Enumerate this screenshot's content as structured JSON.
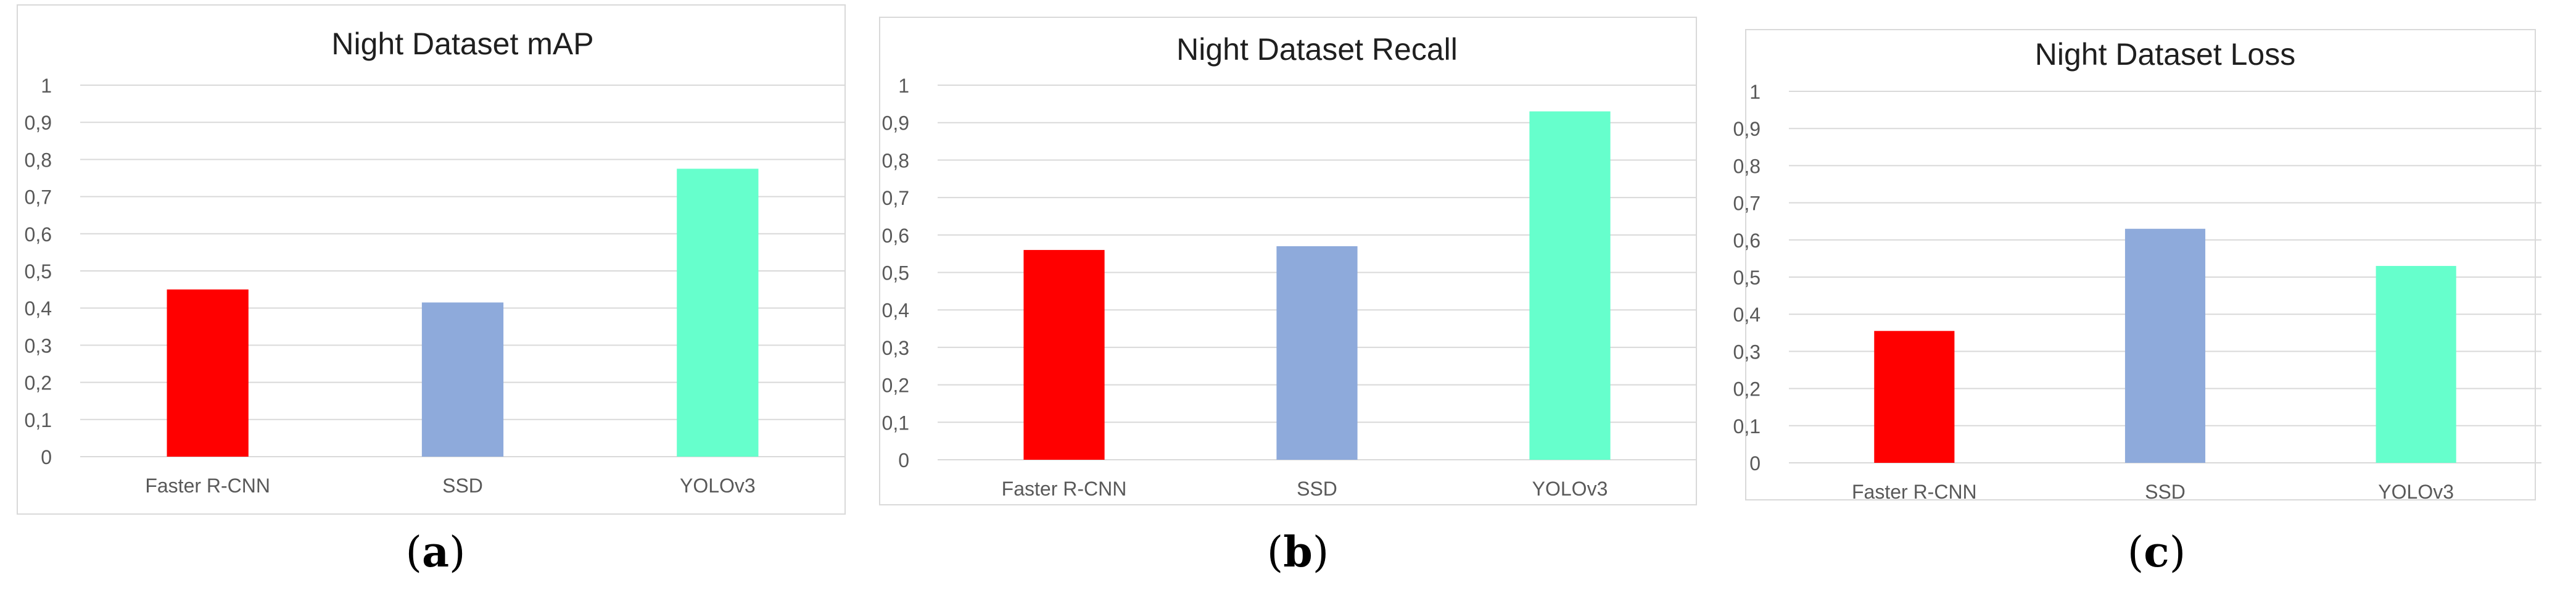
{
  "chart_data": [
    {
      "type": "bar",
      "title": "Night Dataset mAP",
      "categories": [
        "Faster R-CNN",
        "SSD",
        "YOLOv3"
      ],
      "values": [
        0.45,
        0.415,
        0.775
      ],
      "colors": [
        "#ff0000",
        "#8eaadb",
        "#66ffcc"
      ],
      "ylim": [
        0,
        1
      ],
      "yticks": [
        "0",
        "0,1",
        "0,2",
        "0,3",
        "0,4",
        "0,5",
        "0,6",
        "0,7",
        "0,8",
        "0,9",
        "1"
      ],
      "grid": true,
      "subfigure": "a"
    },
    {
      "type": "bar",
      "title": "Night Dataset Recall",
      "categories": [
        "Faster R-CNN",
        "SSD",
        "YOLOv3"
      ],
      "values": [
        0.56,
        0.57,
        0.93
      ],
      "colors": [
        "#ff0000",
        "#8eaadb",
        "#66ffcc"
      ],
      "ylim": [
        0,
        1
      ],
      "yticks": [
        "0",
        "0,1",
        "0,2",
        "0,3",
        "0,4",
        "0,5",
        "0,6",
        "0,7",
        "0,8",
        "0,9",
        "1"
      ],
      "grid": true,
      "subfigure": "b"
    },
    {
      "type": "bar",
      "title": "Night Dataset Loss",
      "categories": [
        "Faster R-CNN",
        "SSD",
        "YOLOv3"
      ],
      "values": [
        0.355,
        0.63,
        0.53
      ],
      "colors": [
        "#ff0000",
        "#8eaadb",
        "#66ffcc"
      ],
      "ylim": [
        0,
        1
      ],
      "yticks": [
        "0",
        "0,1",
        "0,2",
        "0,3",
        "0,4",
        "0,5",
        "0,6",
        "0,7",
        "0,8",
        "0,9",
        "1"
      ],
      "grid": true,
      "subfigure": "c"
    }
  ],
  "labels": {
    "a": {
      "open": "(",
      "letter": "a",
      "close": ")"
    },
    "b": {
      "open": "(",
      "letter": "b",
      "close": ")"
    },
    "c": {
      "open": "(",
      "letter": "c",
      "close": ")"
    }
  }
}
